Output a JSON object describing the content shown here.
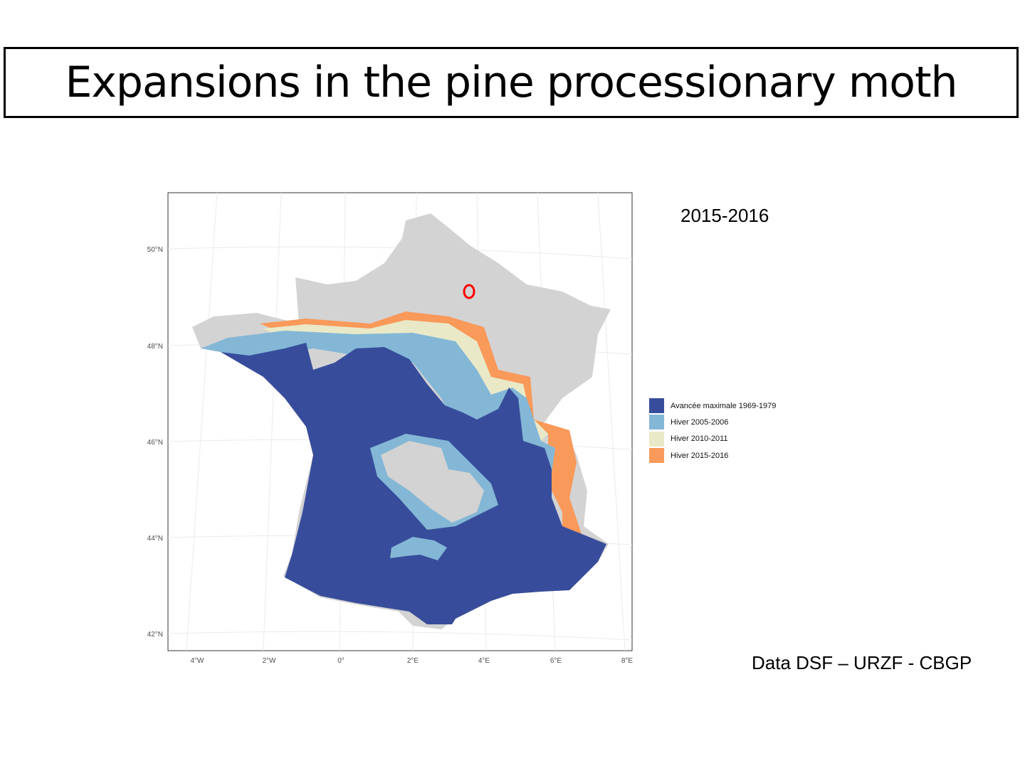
{
  "slide": {
    "title": "Expansions in the pine processionary moth",
    "year_label": "2015-2016",
    "credit": "Data DSF – URZF - CBGP"
  },
  "map": {
    "lat_ticks": [
      "50°N",
      "48°N",
      "46°N",
      "44°N",
      "42°N"
    ],
    "lon_ticks": [
      "4°W",
      "2°W",
      "0°",
      "2°E",
      "4°E",
      "6°E",
      "8°E"
    ],
    "colors": {
      "background_land": "#d3d3d3",
      "marker": "#ff0000"
    },
    "marker": {
      "type": "red-circle",
      "lon": 3.6,
      "lat": 49.1
    }
  },
  "legend": {
    "items": [
      {
        "label": "Avancée maximale 1969-1979",
        "color": "#374d9b"
      },
      {
        "label": "Hiver 2005-2006",
        "color": "#84b7d6"
      },
      {
        "label": "Hiver 2010-2011",
        "color": "#e9e9c8"
      },
      {
        "label": "Hiver 2015-2016",
        "color": "#f9995a"
      }
    ]
  }
}
